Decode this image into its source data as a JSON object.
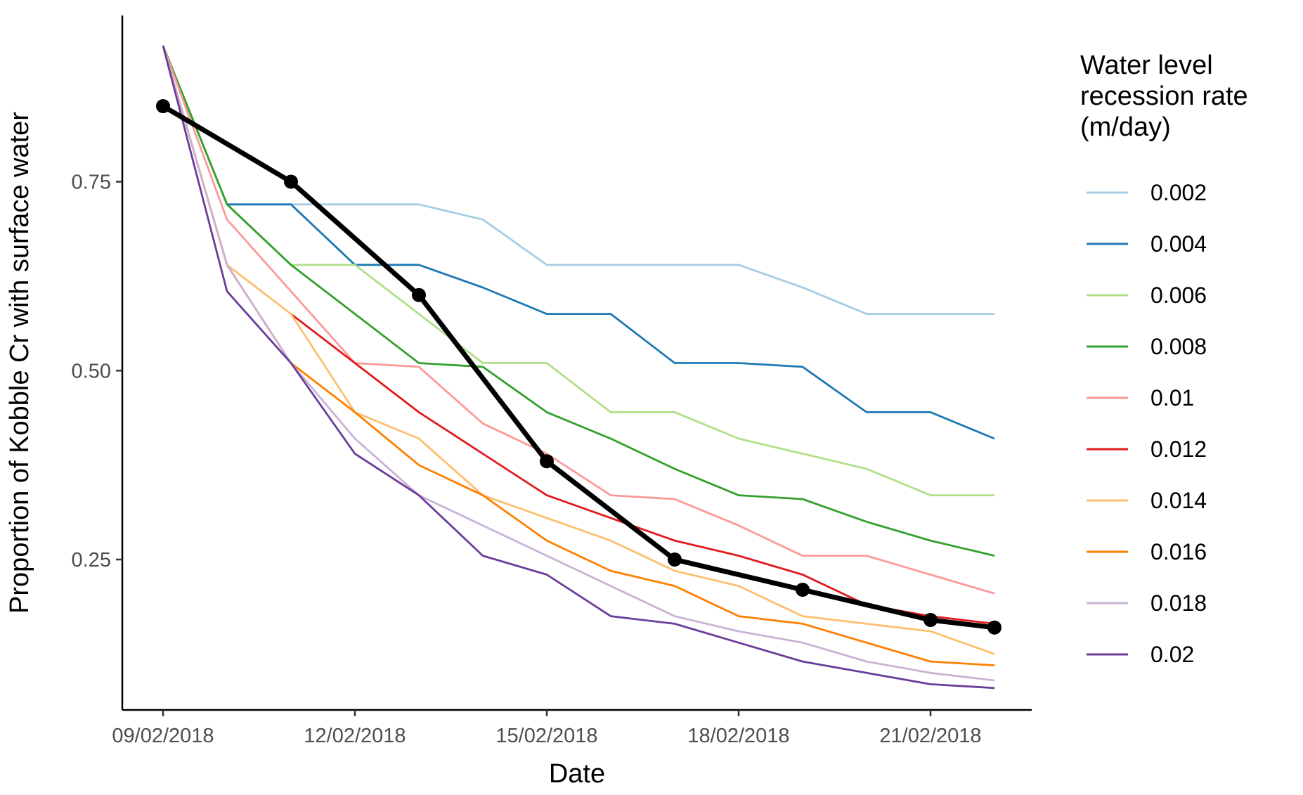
{
  "chart_data": {
    "type": "line",
    "xlabel": "Date",
    "ylabel": "Proportion of Kobble Cr with surface water",
    "x_ticks": [
      "09/02/2018",
      "12/02/2018",
      "15/02/2018",
      "18/02/2018",
      "21/02/2018"
    ],
    "y_ticks": [
      "0.25",
      "0.50",
      "0.75"
    ],
    "ylim": [
      0.05,
      0.97
    ],
    "xlim": [
      "08/02/2018",
      "23/02/2018"
    ],
    "grid": false,
    "legend": {
      "title_lines": [
        "Water level",
        "recession rate",
        "(m/day)"
      ],
      "position": "right"
    },
    "dates": [
      "09/02/2018",
      "10/02/2018",
      "11/02/2018",
      "12/02/2018",
      "13/02/2018",
      "14/02/2018",
      "15/02/2018",
      "16/02/2018",
      "17/02/2018",
      "18/02/2018",
      "19/02/2018",
      "20/02/2018",
      "21/02/2018",
      "22/02/2018"
    ],
    "series": [
      {
        "name": "0.002",
        "color": "#a6cee3",
        "values": [
          0.93,
          0.72,
          0.72,
          0.72,
          0.72,
          0.7,
          0.64,
          0.64,
          0.64,
          0.64,
          0.61,
          0.575,
          0.575,
          0.575
        ]
      },
      {
        "name": "0.004",
        "color": "#1f78b4",
        "values": [
          0.93,
          0.72,
          0.72,
          0.64,
          0.64,
          0.61,
          0.575,
          0.575,
          0.51,
          0.51,
          0.505,
          0.445,
          0.445,
          0.41
        ]
      },
      {
        "name": "0.006",
        "color": "#b2df8a",
        "values": [
          0.93,
          0.72,
          0.64,
          0.64,
          0.575,
          0.51,
          0.51,
          0.445,
          0.445,
          0.41,
          0.39,
          0.37,
          0.335,
          0.335
        ]
      },
      {
        "name": "0.008",
        "color": "#33a02c",
        "values": [
          0.93,
          0.72,
          0.64,
          0.575,
          0.51,
          0.505,
          0.445,
          0.41,
          0.37,
          0.335,
          0.33,
          0.3,
          0.275,
          0.255
        ]
      },
      {
        "name": "0.01",
        "color": "#fb9a99",
        "values": [
          0.93,
          0.7,
          0.605,
          0.51,
          0.505,
          0.43,
          0.39,
          0.335,
          0.33,
          0.295,
          0.255,
          0.255,
          0.23,
          0.205
        ]
      },
      {
        "name": "0.012",
        "color": "#e31a1c",
        "values": [
          null,
          null,
          0.575,
          0.51,
          0.445,
          0.39,
          0.335,
          0.305,
          0.275,
          0.255,
          0.23,
          0.19,
          0.175,
          0.165
        ]
      },
      {
        "name": "0.014",
        "color": "#fdbf6f",
        "values": [
          0.93,
          0.64,
          0.575,
          0.445,
          0.41,
          0.335,
          0.305,
          0.275,
          0.235,
          0.215,
          0.175,
          0.165,
          0.155,
          0.125
        ]
      },
      {
        "name": "0.016",
        "color": "#ff7f00",
        "values": [
          0.93,
          0.64,
          0.51,
          0.445,
          0.375,
          0.335,
          0.275,
          0.235,
          0.215,
          0.175,
          0.165,
          0.14,
          0.115,
          0.11
        ]
      },
      {
        "name": "0.018",
        "color": "#cab2d6",
        "values": [
          0.93,
          0.64,
          0.51,
          0.41,
          0.335,
          0.295,
          0.255,
          0.215,
          0.175,
          0.155,
          0.14,
          0.115,
          0.1,
          0.09
        ]
      },
      {
        "name": "0.02",
        "color": "#6a3d9a",
        "values": [
          0.93,
          0.605,
          0.51,
          0.39,
          0.335,
          0.255,
          0.23,
          0.175,
          0.165,
          0.14,
          0.115,
          0.1,
          0.085,
          0.08
        ]
      }
    ],
    "observed": {
      "color": "#000000",
      "points": [
        {
          "x": "09/02/2018",
          "y": 0.85
        },
        {
          "x": "11/02/2018",
          "y": 0.75
        },
        {
          "x": "13/02/2018",
          "y": 0.6
        },
        {
          "x": "15/02/2018",
          "y": 0.38
        },
        {
          "x": "17/02/2018",
          "y": 0.25
        },
        {
          "x": "19/02/2018",
          "y": 0.21
        },
        {
          "x": "21/02/2018",
          "y": 0.17
        },
        {
          "x": "22/02/2018",
          "y": 0.16
        }
      ]
    }
  }
}
